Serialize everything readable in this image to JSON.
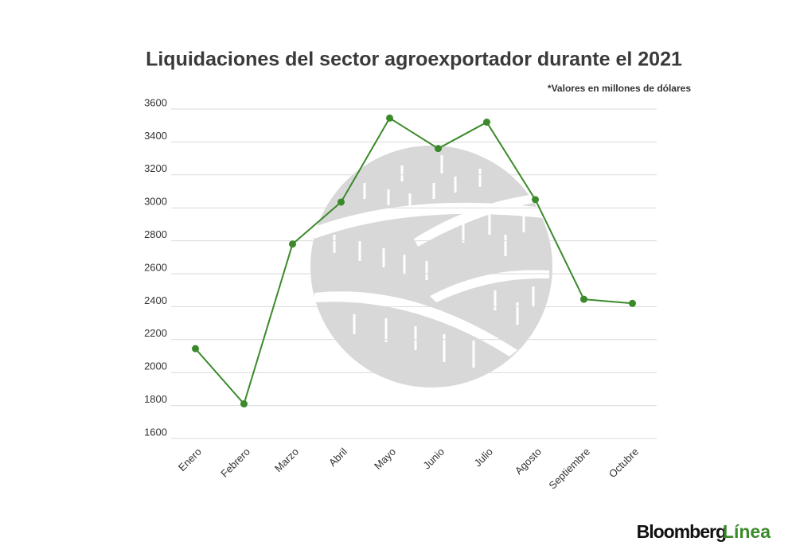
{
  "chart_data": {
    "type": "line",
    "title": "Liquidaciones del sector agroexportador durante el 2021",
    "subtitle": "*Valores en millones de dólares",
    "categories": [
      "Enero",
      "Febrero",
      "Marzo",
      "Abril",
      "Mayo",
      "Junio",
      "Julio",
      "Agosto",
      "Septiembre",
      "Octubre"
    ],
    "values": [
      2145,
      1810,
      2780,
      3035,
      3545,
      3360,
      3520,
      3050,
      2445,
      2420
    ],
    "color": "#3a8a2a",
    "ylim": [
      1600,
      3600
    ],
    "yticks": [
      1600,
      1800,
      2000,
      2200,
      2400,
      2600,
      2800,
      3000,
      3200,
      3400,
      3600
    ],
    "grid": true
  },
  "brand": {
    "name": "Bloomberg",
    "suffix": "Línea"
  }
}
